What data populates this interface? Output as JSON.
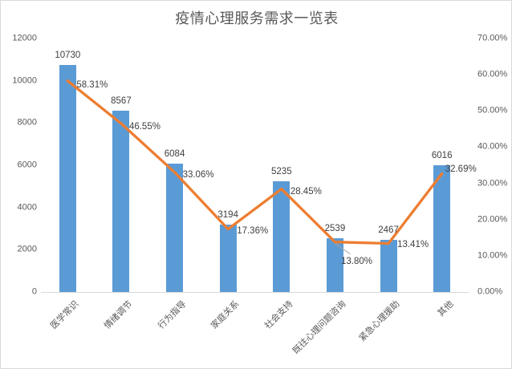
{
  "title": "疫情心理服务需求一览表",
  "colors": {
    "bar": "#5b9bd5",
    "line": "#ed7d31",
    "leader_line": "#a6a6a6",
    "axis_line": "#d9d9d9",
    "axis_text": "#595959",
    "data_label_text": "#404040",
    "frame_border": "#d9d9d9",
    "background": "#ffffff"
  },
  "chart_data": {
    "type": "combo_bar_line",
    "title": "疫情心理服务需求一览表",
    "categories": [
      "医学常识",
      "情绪调节",
      "行为指导",
      "家庭关系",
      "社会支持",
      "既往心理问题咨询",
      "紧急心理援助",
      "其他"
    ],
    "series": [
      {
        "name": "bar-counts",
        "type": "bar",
        "axis": "left",
        "values": [
          10730,
          8567,
          6084,
          3194,
          5235,
          2539,
          2467,
          6016
        ]
      },
      {
        "name": "line-percentages",
        "type": "line",
        "axis": "right",
        "unit": "%",
        "values": [
          58.31,
          46.55,
          33.06,
          17.36,
          28.45,
          13.8,
          13.41,
          32.69
        ]
      }
    ],
    "left_axis": {
      "min": 0,
      "max": 12000,
      "step": 2000
    },
    "right_axis": {
      "min": 0,
      "max": 70,
      "step": 10,
      "decimals": 2,
      "suffix": "%"
    },
    "grid": false,
    "legend": "none",
    "data_labels": true,
    "callout_index": 5
  }
}
